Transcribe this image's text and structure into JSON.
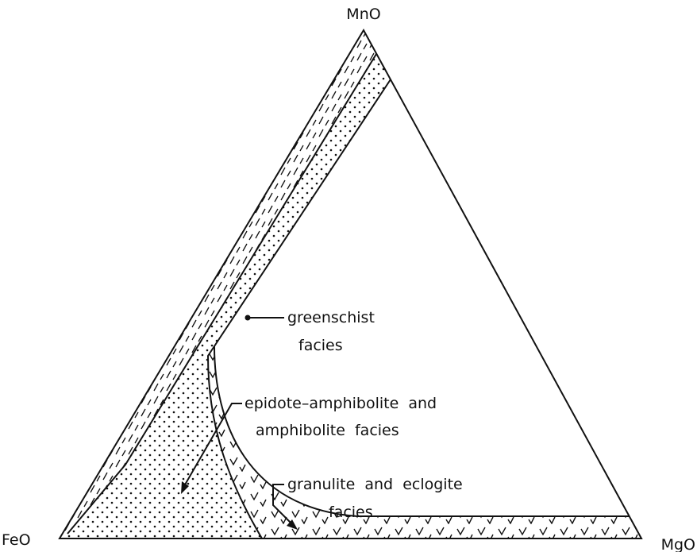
{
  "vertices": {
    "top": "MnO",
    "left": "FeO",
    "right": "MgO"
  },
  "labels": [
    {
      "lines": [
        "greenschist",
        "facies"
      ]
    },
    {
      "lines": [
        "epidote–amphibolite  and",
        "amphibolite  facies"
      ]
    },
    {
      "lines": [
        "granulite  and  eclogite",
        "facies"
      ]
    }
  ]
}
